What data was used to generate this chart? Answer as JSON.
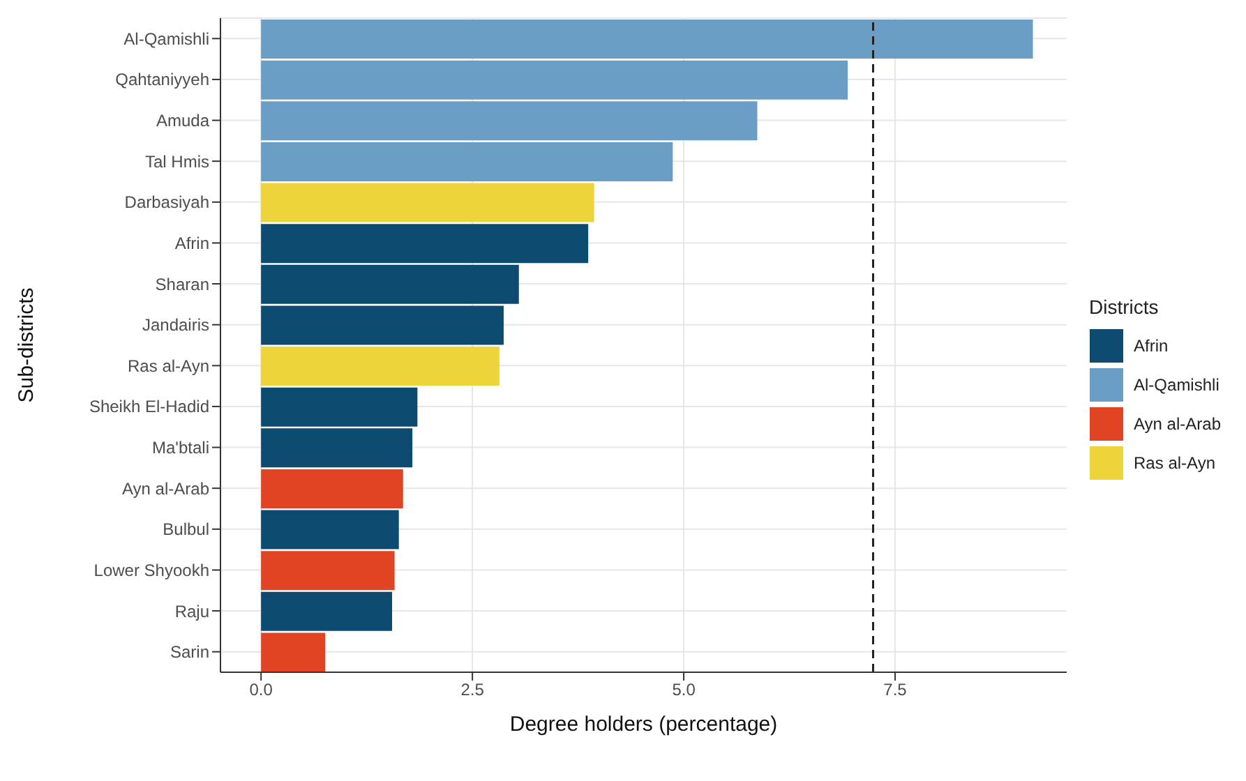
{
  "chart_data": {
    "type": "bar",
    "orientation": "horizontal",
    "stacked": true,
    "xlabel": "Degree holders (percentage)",
    "ylabel": "Sub-districts",
    "legend_title": "Districts",
    "legend": "right",
    "grid": true,
    "categories": [
      "Al-Qamishli",
      "Qahtaniyyeh",
      "Amuda",
      "Tal Hmis",
      "Darbasiyah",
      "Afrin",
      "Sharan",
      "Jandairis",
      "Ras al-Ayn",
      "Sheikh El-Hadid",
      "Ma'btali",
      "Ayn al-Arab",
      "Bulbul",
      "Lower Shyookh",
      "Raju",
      "Sarin"
    ],
    "series": [
      {
        "name": "Afrin",
        "color": "#0d4a70",
        "values": [
          null,
          null,
          null,
          null,
          null,
          3.87,
          3.05,
          2.87,
          null,
          1.85,
          1.79,
          null,
          1.63,
          null,
          1.55,
          null
        ]
      },
      {
        "name": "Al-Qamishli",
        "color": "#6a9ec5",
        "values": [
          9.13,
          6.94,
          5.87,
          4.87,
          null,
          null,
          null,
          null,
          null,
          null,
          null,
          null,
          null,
          null,
          null,
          null
        ]
      },
      {
        "name": "Ayn al-Arab",
        "color": "#e04424",
        "values": [
          null,
          null,
          null,
          null,
          null,
          null,
          null,
          null,
          null,
          null,
          null,
          1.68,
          null,
          1.58,
          null,
          0.76
        ]
      },
      {
        "name": "Ras al-Ayn",
        "color": "#eed43b",
        "values": [
          null,
          null,
          null,
          null,
          3.94,
          null,
          null,
          null,
          2.82,
          null,
          null,
          null,
          null,
          null,
          null,
          null
        ]
      }
    ],
    "xlim": [
      -0.48,
      9.53
    ],
    "xticks": [
      {
        "value": 0,
        "label": "0.0"
      },
      2.5,
      {
        "value": 5,
        "label": "5.0"
      },
      7.5
    ],
    "ref_lines": [
      {
        "axis": "x",
        "value": 7.24,
        "line_style": "dashed",
        "color": "#222222"
      }
    ]
  }
}
